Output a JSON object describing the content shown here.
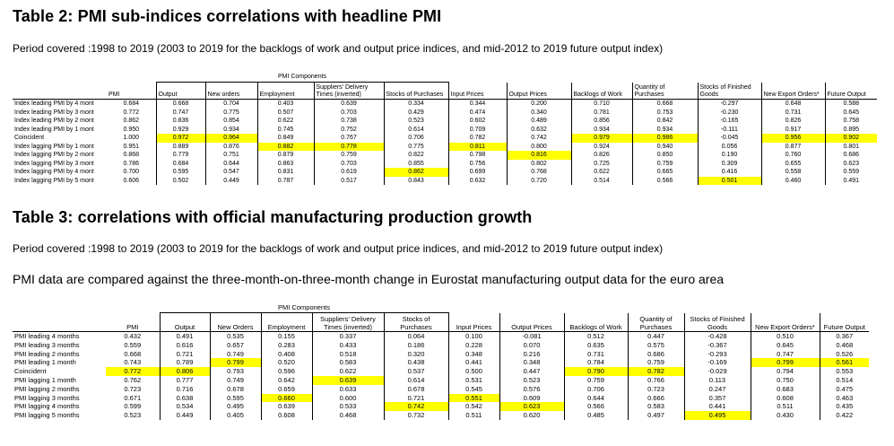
{
  "table2": {
    "title": "Table 2: PMI sub-indices correlations with headline PMI",
    "period": "Period covered :1998 to 2019 (2003 to 2019 for the backlogs of work and output price indices, and mid-2012 to 2019 future output index)",
    "group_label": "PMI Components",
    "columns": [
      "",
      "PMI",
      "Output",
      "New orders",
      "Employment",
      "Suppliers' Delivery Times (inverted)",
      "Stocks of Purchases",
      "Input Prices",
      "Output Prices",
      "Backlogs of Work",
      "Quantity of Purchases",
      "Stocks of Finished Goods",
      "New Export Orders*",
      "Future Output"
    ],
    "rows": [
      {
        "label": "Index leading PMI by 4 mont",
        "values": [
          "0.684",
          "0.668",
          "0.704",
          "0.403",
          "0.639",
          "0.334",
          "0.344",
          "0.200",
          "0.710",
          "0.668",
          "-0.297",
          "0.648",
          "0.588"
        ],
        "hl": []
      },
      {
        "label": "Index leading PMI by 3 mont",
        "values": [
          "0.772",
          "0.747",
          "0.775",
          "0.507",
          "0.703",
          "0.429",
          "0.474",
          "0.340",
          "0.781",
          "0.753",
          "-0.230",
          "0.731",
          "0.645"
        ],
        "hl": []
      },
      {
        "label": "Index leading PMI by 2 mont",
        "values": [
          "0.862",
          "0.836",
          "0.854",
          "0.622",
          "0.738",
          "0.523",
          "0.602",
          "0.489",
          "0.856",
          "0.842",
          "-0.165",
          "0.826",
          "0.758"
        ],
        "hl": []
      },
      {
        "label": "Index leading PMI by 1 mont",
        "values": [
          "0.950",
          "0.929",
          "0.934",
          "0.745",
          "0.752",
          "0.614",
          "0.709",
          "0.632",
          "0.934",
          "0.934",
          "-0.111",
          "0.917",
          "0.895"
        ],
        "hl": []
      },
      {
        "label": "Coincident",
        "values": [
          "1.000",
          "0.972",
          "0.964",
          "0.849",
          "0.767",
          "0.706",
          "0.782",
          "0.742",
          "0.979",
          "0.986",
          "-0.045",
          "0.956",
          "0.902"
        ],
        "hl": [
          1,
          2,
          8,
          9,
          11,
          12
        ]
      },
      {
        "label": "Index lagging PMI by 1 mont",
        "values": [
          "0.951",
          "0.889",
          "0.876",
          "0.882",
          "0.778",
          "0.775",
          "0.811",
          "0.800",
          "0.924",
          "0.940",
          "0.056",
          "0.877",
          "0.801"
        ],
        "hl": [
          3,
          4,
          6
        ]
      },
      {
        "label": "Index lagging PMI by 2 mont",
        "values": [
          "0.868",
          "0.779",
          "0.751",
          "0.879",
          "0.759",
          "0.822",
          "0.798",
          "0.816",
          "0.826",
          "0.850",
          "0.190",
          "0.760",
          "0.686"
        ],
        "hl": [
          7
        ]
      },
      {
        "label": "Index lagging PMI by 3 mont",
        "values": [
          "0.786",
          "0.684",
          "0.644",
          "0.863",
          "0.703",
          "0.855",
          "0.756",
          "0.802",
          "0.725",
          "0.759",
          "0.309",
          "0.655",
          "0.623"
        ],
        "hl": []
      },
      {
        "label": "Index lagging PMI by 4 mont",
        "values": [
          "0.700",
          "0.595",
          "0.547",
          "0.831",
          "0.619",
          "0.862",
          "0.699",
          "0.768",
          "0.622",
          "0.665",
          "0.416",
          "0.558",
          "0.559"
        ],
        "hl": [
          5
        ]
      },
      {
        "label": "Index lagging PMI by 5 mont",
        "values": [
          "0.606",
          "0.502",
          "0.449",
          "0.787",
          "0.517",
          "0.843",
          "0.632",
          "0.720",
          "0.514",
          "0.566",
          "0.501",
          "0.460",
          "0.491"
        ],
        "hl": [
          10
        ]
      }
    ]
  },
  "table3": {
    "title": "Table 3: correlations with official manufacturing production growth",
    "period": "Period covered :1998 to 2019 (2003 to 2019 for the backlogs of work and output price indices, and mid-2012 to 2019 future output index)",
    "note": "PMI data are compared against the three-month-on-three-month change in Eurostat manufacturing output data for the euro area",
    "group_label": "PMI Components",
    "columns": [
      "",
      "PMI",
      "Output",
      "New Orders",
      "Employment",
      "Suppliers' Delivery Times (inverted)",
      "Stocks of Purchases",
      "Input Prices",
      "Output Prices",
      "Backlogs of Work",
      "Quantity of Purchases",
      "Stocks of Finished Goods",
      "New Export Orders*",
      "Future Output"
    ],
    "rows": [
      {
        "label": "PMI leading 4 months",
        "values": [
          "0.432",
          "0.491",
          "0.535",
          "0.155",
          "0.337",
          "0.064",
          "0.100",
          "-0.081",
          "0.512",
          "0.447",
          "-0.428",
          "0.510",
          "0.367"
        ],
        "hl": []
      },
      {
        "label": "PMI leading 3 months",
        "values": [
          "0.559",
          "0.616",
          "0.657",
          "0.283",
          "0.433",
          "0.186",
          "0.228",
          "0.070",
          "0.635",
          "0.575",
          "-0.367",
          "0.645",
          "0.468"
        ],
        "hl": []
      },
      {
        "label": "PMI leading 2 months",
        "values": [
          "0.668",
          "0.721",
          "0.749",
          "0.408",
          "0.518",
          "0.320",
          "0.348",
          "0.216",
          "0.731",
          "0.686",
          "-0.293",
          "0.747",
          "0.526"
        ],
        "hl": []
      },
      {
        "label": "PMI leading 1 month",
        "values": [
          "0.743",
          "0.789",
          "0.799",
          "0.520",
          "0.583",
          "0.438",
          "0.441",
          "0.348",
          "0.784",
          "0.759",
          "-0.169",
          "0.799",
          "0.561"
        ],
        "hl": [
          2,
          11,
          12
        ]
      },
      {
        "label": "Coincident",
        "values": [
          "0.772",
          "0.806",
          "0.793",
          "0.596",
          "0.622",
          "0.537",
          "0.500",
          "0.447",
          "0.790",
          "0.782",
          "-0.029",
          "0.794",
          "0.553"
        ],
        "hl": [
          0,
          1,
          8,
          9
        ]
      },
      {
        "label": "PMI lagging 1 month",
        "values": [
          "0.762",
          "0.777",
          "0.749",
          "0.642",
          "0.639",
          "0.614",
          "0.531",
          "0.523",
          "0.759",
          "0.766",
          "0.113",
          "0.750",
          "0.514"
        ],
        "hl": [
          4
        ]
      },
      {
        "label": "PMI lagging 2 months",
        "values": [
          "0.723",
          "0.716",
          "0.678",
          "0.659",
          "0.633",
          "0.678",
          "0.545",
          "0.576",
          "0.706",
          "0.723",
          "0.247",
          "0.683",
          "0.475"
        ],
        "hl": []
      },
      {
        "label": "PMI lagging 3 months",
        "values": [
          "0.671",
          "0.638",
          "0.595",
          "0.660",
          "0.600",
          "0.721",
          "0.551",
          "0.609",
          "0.644",
          "0.666",
          "0.357",
          "0.608",
          "0.463"
        ],
        "hl": [
          3,
          6
        ]
      },
      {
        "label": "PMI lagging 4 months",
        "values": [
          "0.599",
          "0.534",
          "0.495",
          "0.639",
          "0.533",
          "0.742",
          "0.542",
          "0.623",
          "0.566",
          "0.583",
          "0.441",
          "0.511",
          "0.435"
        ],
        "hl": [
          5,
          7
        ]
      },
      {
        "label": "PMI lagging 5 months",
        "values": [
          "0.523",
          "0.449",
          "0.405",
          "0.608",
          "0.468",
          "0.732",
          "0.511",
          "0.620",
          "0.485",
          "0.497",
          "0.495",
          "0.430",
          "0.422"
        ],
        "hl": [
          10
        ]
      }
    ]
  }
}
